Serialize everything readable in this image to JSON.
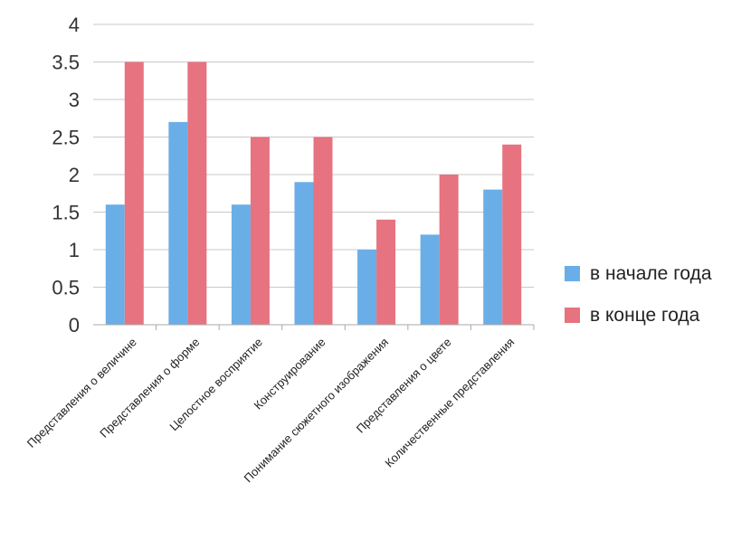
{
  "chart_data": {
    "type": "bar",
    "categories": [
      "Представления о величине",
      "Представления о форме",
      "Целостное восприятие",
      "Конструирование",
      "Понимание сюжетного изображения",
      "Представления о цвете",
      "Количественные представления"
    ],
    "series": [
      {
        "name": "в начале года",
        "values": [
          1.6,
          2.7,
          1.6,
          1.9,
          1.0,
          1.2,
          1.8
        ],
        "color": "#6aaee8"
      },
      {
        "name": "в конце года",
        "values": [
          3.5,
          3.5,
          2.5,
          2.5,
          1.4,
          2.0,
          2.4
        ],
        "color": "#e6737f"
      }
    ],
    "ylim": [
      0,
      4
    ],
    "yticks": [
      "0",
      "0.5",
      "1",
      "1.5",
      "2",
      "2.5",
      "3",
      "3.5",
      "4"
    ],
    "grid": true,
    "legend_position": "right",
    "title": "",
    "xlabel": "",
    "ylabel": ""
  }
}
